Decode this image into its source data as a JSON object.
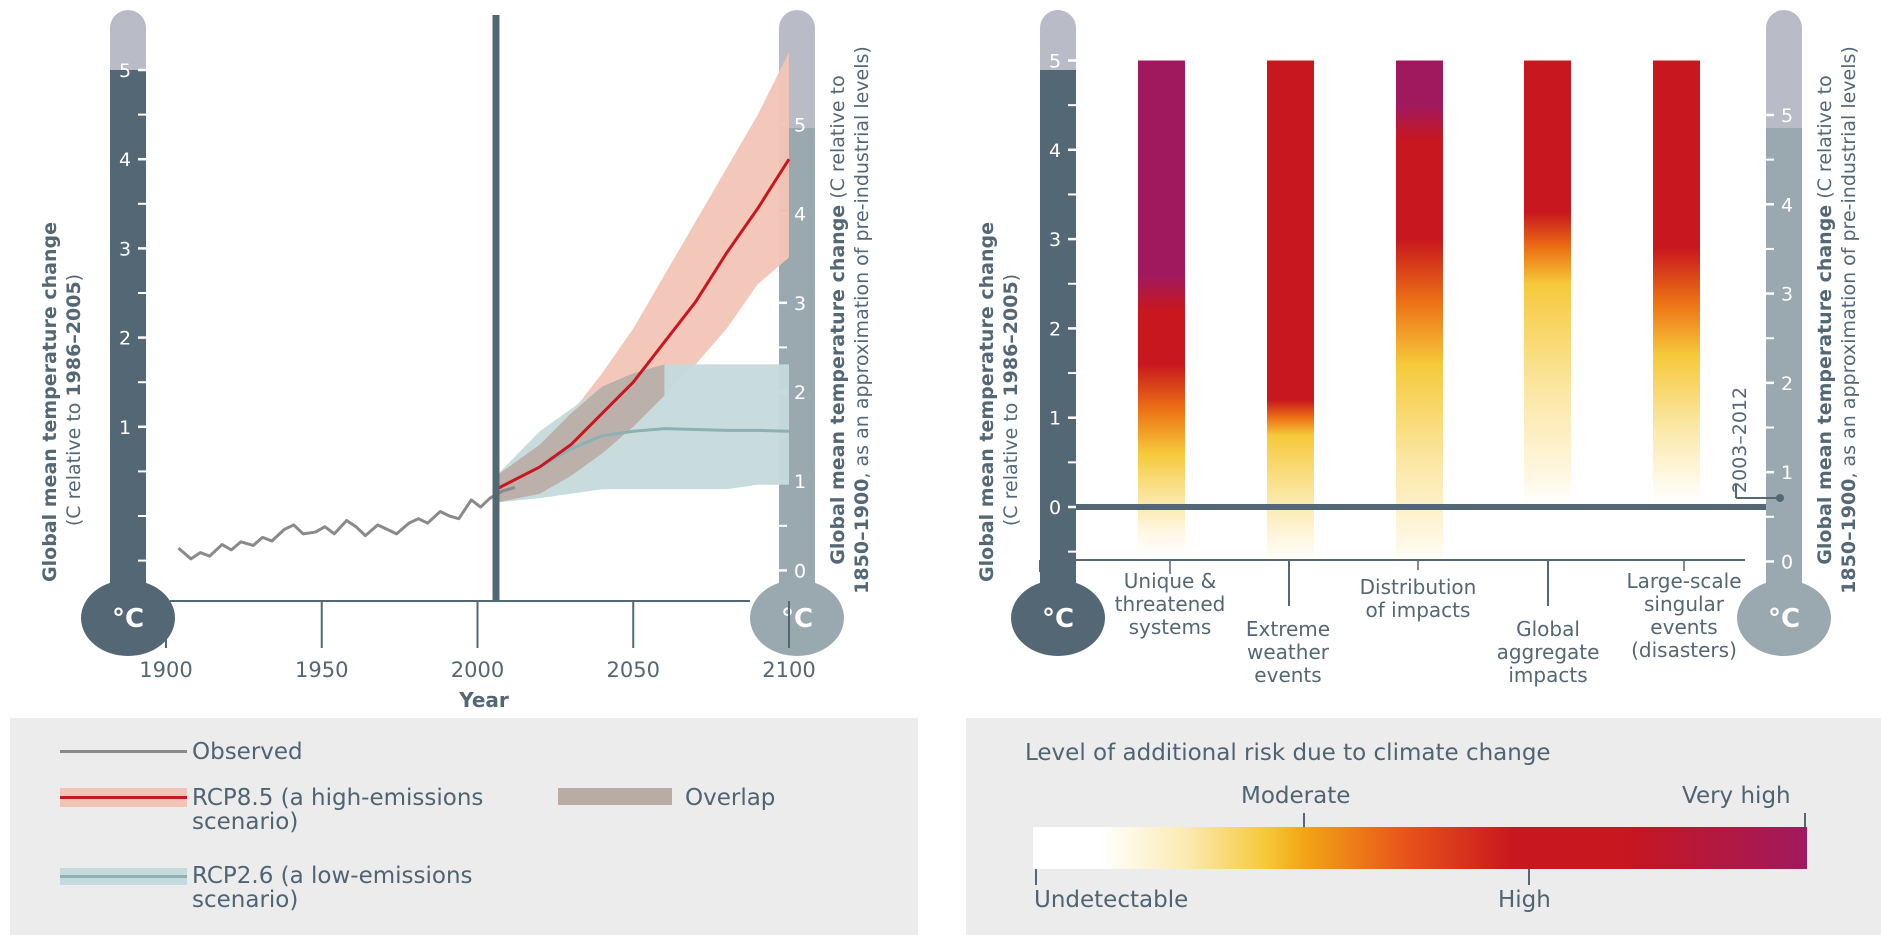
{
  "colors": {
    "thermo_dark": "#546775",
    "thermo_light": "#9aa8b0",
    "thermo_cap": "#b9bcc6",
    "observed": "#8a8a8a",
    "rcp85": "#c8171e",
    "rcp85_band": "#f2c4b6",
    "rcp26": "#8eb0b4",
    "rcp26_band": "#c5dadc",
    "overlap": "#b9aca4",
    "axis": "#546775",
    "panel_bg": "#ececec",
    "risk_white": "#ffffff",
    "risk_yellow": "#f6c93a",
    "risk_orange": "#f2a516",
    "risk_red": "#c8171e",
    "risk_purple": "#a0195f"
  },
  "left_thermometer": {
    "unit_icon": "°C",
    "ticks": [
      "5",
      "4",
      "3",
      "2",
      "1"
    ],
    "label_bold": "Global mean temperature change",
    "label_normal_a": "(C relative to ",
    "label_bold_b": "1986–2005",
    "label_normal_c": ")"
  },
  "right_thermometer": {
    "unit_icon": "°C",
    "ticks": [
      "5",
      "4",
      "3",
      "2",
      "1",
      "0"
    ],
    "label_bold": "Global mean temperature change",
    "label_normal_a": " (C relative to",
    "label_bold_b": "1850–1900",
    "label_normal_c": ", as an approximation of pre-industrial levels)"
  },
  "risk_left_thermometer": {
    "unit_icon": "°C",
    "ticks": [
      "5",
      "4",
      "3",
      "2",
      "1",
      "0"
    ]
  },
  "risk_right_thermometer": {
    "unit_icon": "°C",
    "ticks": [
      "5",
      "4",
      "3",
      "2",
      "1",
      "0"
    ]
  },
  "chart_data": [
    {
      "type": "line",
      "xlabel": "Year",
      "ylabel": "Global mean temperature change (C relative to 1986–2005)",
      "xlim": [
        1900,
        2100
      ],
      "x_ticks": [
        "1900",
        "1950",
        "2000",
        "2050",
        "2100"
      ],
      "ylim": [
        -0.6,
        5
      ],
      "y_ticks": [
        "5",
        "4",
        "3",
        "2",
        "1"
      ],
      "series": [
        {
          "name": "Observed",
          "x": [
            1904,
            1908,
            1911,
            1914,
            1918,
            1921,
            1924,
            1928,
            1931,
            1934,
            1938,
            1941,
            1944,
            1948,
            1951,
            1954,
            1958,
            1961,
            1964,
            1968,
            1971,
            1974,
            1978,
            1981,
            1984,
            1988,
            1991,
            1994,
            1998,
            2001,
            2004,
            2008,
            2012
          ],
          "values": [
            -0.36,
            -0.48,
            -0.41,
            -0.45,
            -0.32,
            -0.38,
            -0.29,
            -0.33,
            -0.24,
            -0.28,
            -0.15,
            -0.1,
            -0.2,
            -0.18,
            -0.12,
            -0.2,
            -0.05,
            -0.12,
            -0.22,
            -0.1,
            -0.15,
            -0.2,
            -0.08,
            -0.03,
            -0.08,
            0.05,
            0.0,
            -0.03,
            0.18,
            0.1,
            0.2,
            0.28,
            0.32
          ]
        },
        {
          "name": "RCP8.5 (a high-emissions scenario)",
          "x": [
            2006,
            2020,
            2030,
            2040,
            2050,
            2060,
            2070,
            2080,
            2090,
            2100
          ],
          "values": [
            0.3,
            0.55,
            0.8,
            1.15,
            1.5,
            1.95,
            2.4,
            2.95,
            3.45,
            4.0
          ],
          "band_low": [
            0.15,
            0.25,
            0.45,
            0.7,
            1.0,
            1.35,
            1.7,
            2.1,
            2.6,
            2.9
          ],
          "band_high": [
            0.45,
            0.8,
            1.15,
            1.6,
            2.1,
            2.7,
            3.3,
            3.9,
            4.5,
            5.2
          ]
        },
        {
          "name": "RCP2.6 (a low-emissions scenario)",
          "x": [
            2006,
            2020,
            2030,
            2040,
            2050,
            2060,
            2070,
            2080,
            2090,
            2100
          ],
          "values": [
            0.3,
            0.55,
            0.75,
            0.9,
            0.95,
            0.98,
            0.97,
            0.96,
            0.96,
            0.95
          ],
          "band_low": [
            0.15,
            0.2,
            0.25,
            0.3,
            0.3,
            0.3,
            0.3,
            0.3,
            0.35,
            0.35
          ],
          "band_high": [
            0.45,
            0.95,
            1.2,
            1.45,
            1.6,
            1.7,
            1.7,
            1.7,
            1.7,
            1.7
          ]
        }
      ]
    },
    {
      "type": "heatmap",
      "ylabel": "Global mean temperature change (C relative to 1986–2005)",
      "ylim": [
        -0.6,
        5
      ],
      "y_ticks": [
        "5",
        "4",
        "3",
        "2",
        "1",
        "0"
      ],
      "categories": [
        "Unique & threatened systems",
        "Extreme weather events",
        "Distribution of impacts",
        "Global aggregate impacts",
        "Large-scale singular events (disasters)"
      ],
      "note": "2003–2012",
      "risk_levels": [
        "Undetectable",
        "Moderate",
        "High",
        "Very high"
      ],
      "columns": [
        {
          "transitions": {
            "undetectable": -0.4,
            "moderate": 0.6,
            "high": 1.6,
            "very_high": 2.6
          }
        },
        {
          "transitions": {
            "undetectable": -0.5,
            "moderate": 0.8,
            "high": 1.2,
            "very_high": 9
          }
        },
        {
          "transitions": {
            "undetectable": -0.5,
            "moderate": 1.6,
            "high": 3.0,
            "very_high": 4.5
          }
        },
        {
          "transitions": {
            "undetectable": 0.2,
            "moderate": 2.5,
            "high": 3.3,
            "very_high": 9
          }
        },
        {
          "transitions": {
            "undetectable": 0.2,
            "moderate": 1.7,
            "high": 2.9,
            "very_high": 9
          }
        }
      ]
    }
  ],
  "risk_categories_display": [
    [
      "Unique &",
      "threatened",
      "systems"
    ],
    [
      "Extreme",
      "weather",
      "events"
    ],
    [
      "Distribution",
      "of impacts"
    ],
    [
      "Global",
      "aggregate",
      "impacts"
    ],
    [
      "Large-scale",
      "singular",
      "events",
      "(disasters)"
    ]
  ],
  "legend": {
    "observed": "Observed",
    "rcp85_line1": "RCP8.5 (a high-emissions",
    "rcp85_line2": "scenario)",
    "overlap": "Overlap",
    "rcp26_line1": "RCP2.6 (a low-emissions",
    "rcp26_line2": "scenario)"
  },
  "risk_legend": {
    "title": "Level of additional risk due to climate change",
    "moderate": "Moderate",
    "very_high": "Very high",
    "undetectable": "Undetectable",
    "high": "High"
  }
}
